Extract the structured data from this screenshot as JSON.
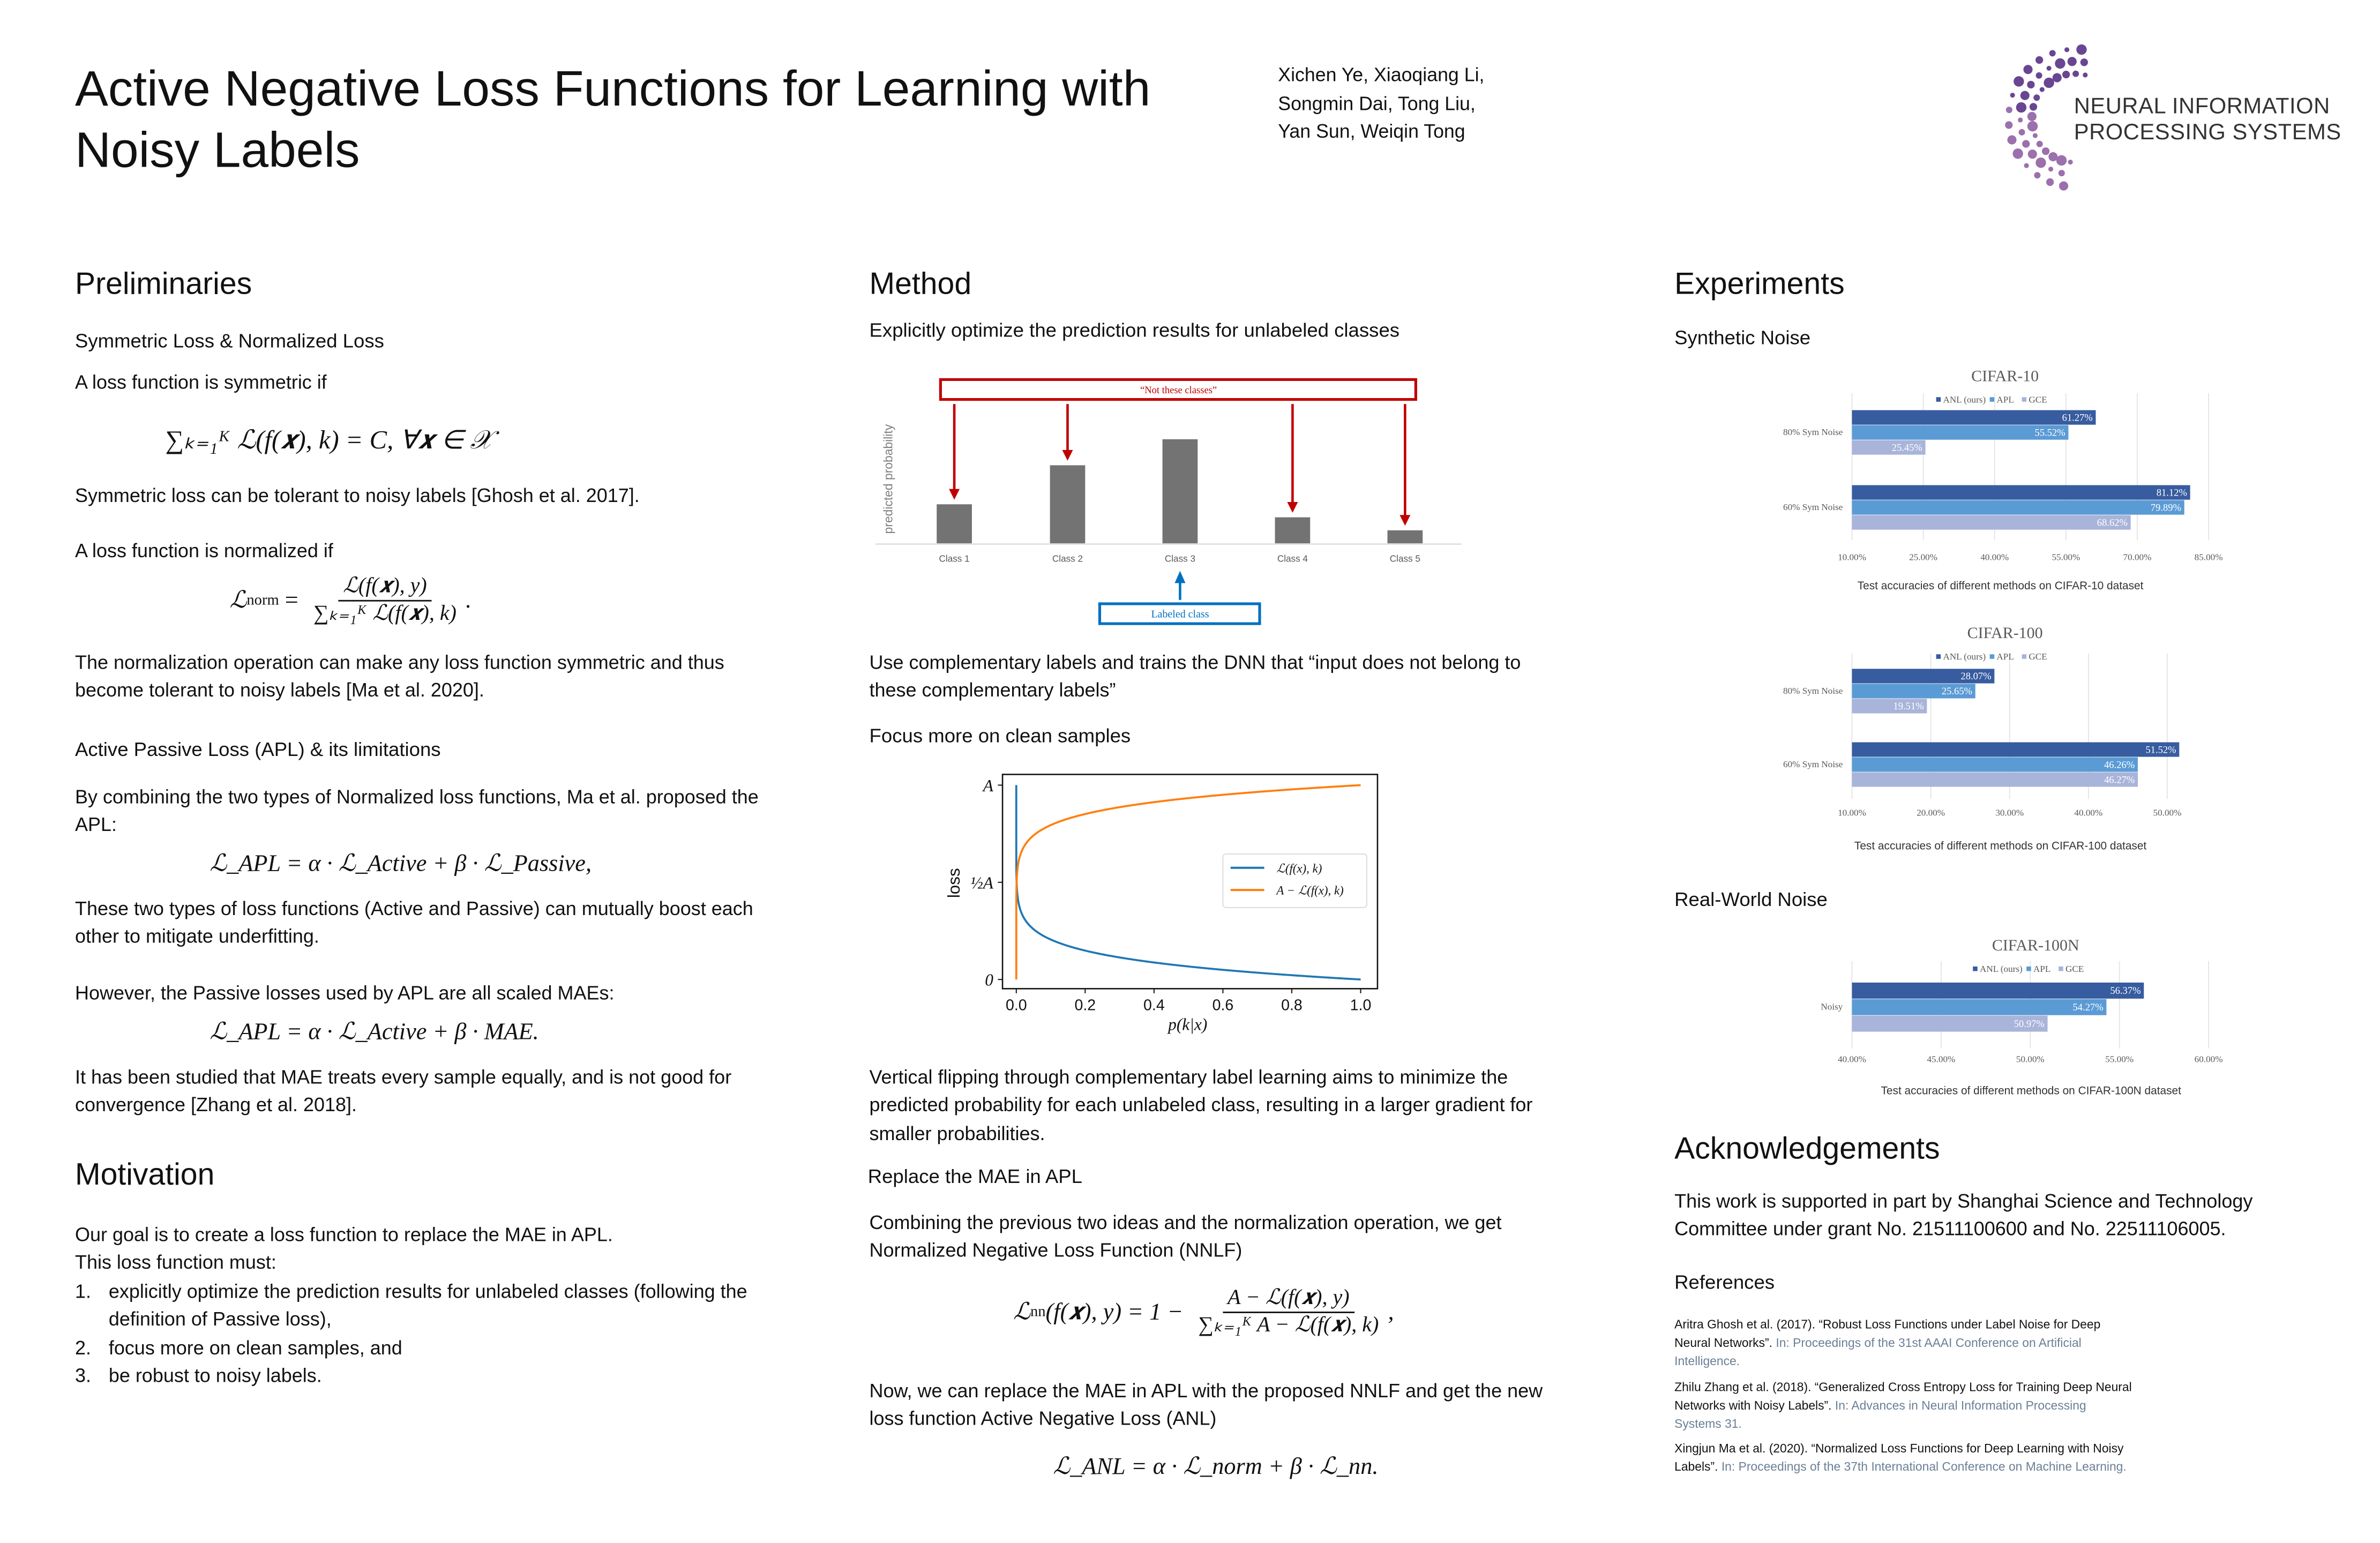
{
  "header": {
    "title": "Active Negative Loss Functions for Learning with Noisy Labels",
    "authors": [
      "Xichen Ye, Xiaoqiang Li,",
      "Songmin Dai, Tong Liu,",
      "Yan Sun, Weiqin Tong"
    ],
    "logo": {
      "line1": "NEURAL INFORMATION",
      "line2": "PROCESSING SYSTEMS",
      "colors": [
        "#6a4592",
        "#9b70ad"
      ]
    }
  },
  "preliminaries": {
    "heading": "Preliminaries",
    "sub1": "Symmetric Loss & Normalized Loss",
    "p1": "A loss function is symmetric if",
    "eq1": "∑ₖ₌₁ᴷ ℒ(f(𝒙), k) = C, ∀𝒙 ∈ 𝒳",
    "p2": "Symmetric loss can be tolerant to noisy labels [Ghosh et al. 2017].",
    "p3": "A loss function is normalized if",
    "eq2": {
      "lhs": "ℒ",
      "lhs_sub": "norm",
      "eq": " = ",
      "num": "ℒ(f(𝒙), y)",
      "den": "∑ₖ₌₁ᴷ ℒ(f(𝒙), k)",
      "end": "."
    },
    "p4": "The normalization operation can make any loss function symmetric and thus become tolerant to noisy labels [Ma et al. 2020].",
    "sub2": "Active Passive Loss (APL) & its limitations",
    "p5": "By combining the two types of Normalized loss functions, Ma et al. proposed the APL:",
    "eq3": "ℒ_APL = α · ℒ_Active + β · ℒ_Passive,",
    "p6": "These two types of loss functions (Active and Passive) can mutually boost each other to mitigate underfitting.",
    "p7": "However, the Passive losses used by APL are all scaled MAEs:",
    "eq4": "ℒ_APL = α · ℒ_Active + β · MAE.",
    "p8": "It has been studied that MAE treats every sample equally, and is not good for convergence [Zhang et al. 2018]."
  },
  "motivation": {
    "heading": "Motivation",
    "p1": "Our goal is to create a loss function to replace the MAE in APL.",
    "p2": "This loss function must:",
    "items": [
      {
        "n": "1.",
        "text": "explicitly optimize the prediction results for unlabeled classes (following the definition of Passive loss),"
      },
      {
        "n": "2.",
        "text": "focus more on clean samples, and"
      },
      {
        "n": "3.",
        "text": "be robust to noisy labels."
      }
    ]
  },
  "method": {
    "heading": "Method",
    "sub1": "Explicitly optimize the prediction results for unlabeled classes",
    "p1": "Use complementary labels and trains the DNN that “input does not belong to these complementary labels”",
    "sub2": "Focus more on clean samples",
    "p2": "Vertical flipping through complementary label learning aims to minimize the predicted probability for each unlabeled class, resulting in a larger gradient for smaller probabilities.",
    "sub3": "Replace the MAE in APL",
    "p3": "Combining the previous two ideas and the normalization operation, we get Normalized Negative Loss Function (NNLF)",
    "eq5": {
      "lhs": "ℒ",
      "lhs_sub": "nn",
      "args": "(f(𝒙), y) = 1 − ",
      "num": "A − ℒ(f(𝒙), y)",
      "den": "∑ₖ₌₁ᴷ A − ℒ(f(𝒙), k)",
      "end": ","
    },
    "p4": "Now, we can replace the MAE in APL with the proposed NNLF and get the new loss function Active Negative Loss (ANL)",
    "eq6": "ℒ_ANL = α · ℒ_norm + β · ℒ_nn."
  },
  "experiments": {
    "heading": "Experiments",
    "sub1": "Synthetic Noise",
    "sub2": "Real-World Noise"
  },
  "acknowledgements": {
    "heading": "Acknowledgements",
    "p1": "This work is supported in part by Shanghai Science and Technology Committee under grant No. 21511100600 and No. 22511106005."
  },
  "references": {
    "heading": "References",
    "items": [
      {
        "main": "Aritra Ghosh et al. (2017). “Robust Loss Functions under Label Noise for Deep Neural Networks”.",
        "venue": "In: Proceedings of the 31st AAAI Conference on Artificial Intelligence."
      },
      {
        "main": "Zhilu Zhang et al. (2018). “Generalized Cross Entropy Loss for Training Deep Neural Networks with Noisy Labels”.",
        "venue": "In: Advances in Neural Information Processing Systems 31."
      },
      {
        "main": "Xingjun Ma et al. (2020). “Normalized Loss Functions for Deep Learning with Noisy Labels”.",
        "venue": "In: Proceedings of the 37th International Conference on Machine Learning."
      }
    ]
  },
  "chart_data": [
    {
      "type": "bar",
      "orientation": "horizontal",
      "title": "CIFAR-10",
      "caption": "Test accuracies of different methods on CIFAR-10 dataset",
      "categories": [
        "80% Sym Noise",
        "60% Sym Noise"
      ],
      "series": [
        {
          "name": "ANL (ours)",
          "color": "#375c9f",
          "values": [
            61.27,
            81.12
          ]
        },
        {
          "name": "APL",
          "color": "#5b9bd5",
          "values": [
            55.52,
            79.89
          ]
        },
        {
          "name": "GCE",
          "color": "#a9b4da",
          "values": [
            25.45,
            68.62
          ]
        }
      ],
      "xticks": [
        "10.00%",
        "25.00%",
        "40.00%",
        "55.00%",
        "70.00%",
        "85.00%"
      ],
      "xlim": [
        10,
        85
      ],
      "grid": true,
      "legend": "top"
    },
    {
      "type": "bar",
      "orientation": "horizontal",
      "title": "CIFAR-100",
      "caption": "Test accuracies of different methods on CIFAR-100 dataset",
      "categories": [
        "80% Sym Noise",
        "60% Sym Noise"
      ],
      "series": [
        {
          "name": "ANL (ours)",
          "color": "#375c9f",
          "values": [
            28.07,
            51.52
          ]
        },
        {
          "name": "APL",
          "color": "#5b9bd5",
          "values": [
            25.65,
            46.26
          ]
        },
        {
          "name": "GCE",
          "color": "#a9b4da",
          "values": [
            19.51,
            46.27
          ]
        }
      ],
      "xticks": [
        "10.00%",
        "20.00%",
        "30.00%",
        "40.00%",
        "50.00%"
      ],
      "xlim": [
        10,
        50
      ],
      "grid": true,
      "legend": "top"
    },
    {
      "type": "bar",
      "orientation": "horizontal",
      "title": "CIFAR-100N",
      "caption": "Test accuracies of different methods on CIFAR-100N dataset",
      "categories": [
        "Noisy"
      ],
      "series": [
        {
          "name": "ANL (ours)",
          "color": "#375c9f",
          "values": [
            56.37
          ]
        },
        {
          "name": "APL",
          "color": "#5b9bd5",
          "values": [
            54.27
          ]
        },
        {
          "name": "GCE",
          "color": "#a9b4da",
          "values": [
            50.97
          ]
        }
      ],
      "xticks": [
        "40.00%",
        "45.00%",
        "50.00%",
        "55.00%",
        "60.00%"
      ],
      "xlim": [
        40,
        60
      ],
      "grid": true,
      "legend": "top"
    },
    {
      "type": "bar",
      "title": "",
      "ylabel": "predicted probability",
      "categories": [
        "Class 1",
        "Class 2",
        "Class 3",
        "Class 4",
        "Class 5"
      ],
      "values": [
        0.15,
        0.3,
        0.4,
        0.1,
        0.05
      ],
      "bar_color": "#737373",
      "annotations": {
        "negative": "“Not these classes”",
        "negative_color": "#c00000",
        "negative_targets": [
          "Class 1",
          "Class 2",
          "Class 4",
          "Class 5"
        ],
        "positive": "Labeled class",
        "positive_color": "#0070c0",
        "positive_target": "Class 3"
      }
    },
    {
      "type": "line",
      "title": "",
      "xlabel": "p(k|x)",
      "ylabel": "loss",
      "xticks": [
        "0.0",
        "0.2",
        "0.4",
        "0.6",
        "0.8",
        "1.0"
      ],
      "yticks": [
        "0",
        "½A",
        "A"
      ],
      "xlim": [
        0,
        1
      ],
      "ylim": [
        0,
        1
      ],
      "series": [
        {
          "name": "ℒ(f(x), k)",
          "color": "#1f77b4",
          "formula": "A·(1 − p^0.1)"
        },
        {
          "name": "A − ℒ(f(x), k)",
          "color": "#ff7f0e",
          "formula": "A·p^0.1"
        }
      ],
      "legend": "center-right"
    }
  ]
}
